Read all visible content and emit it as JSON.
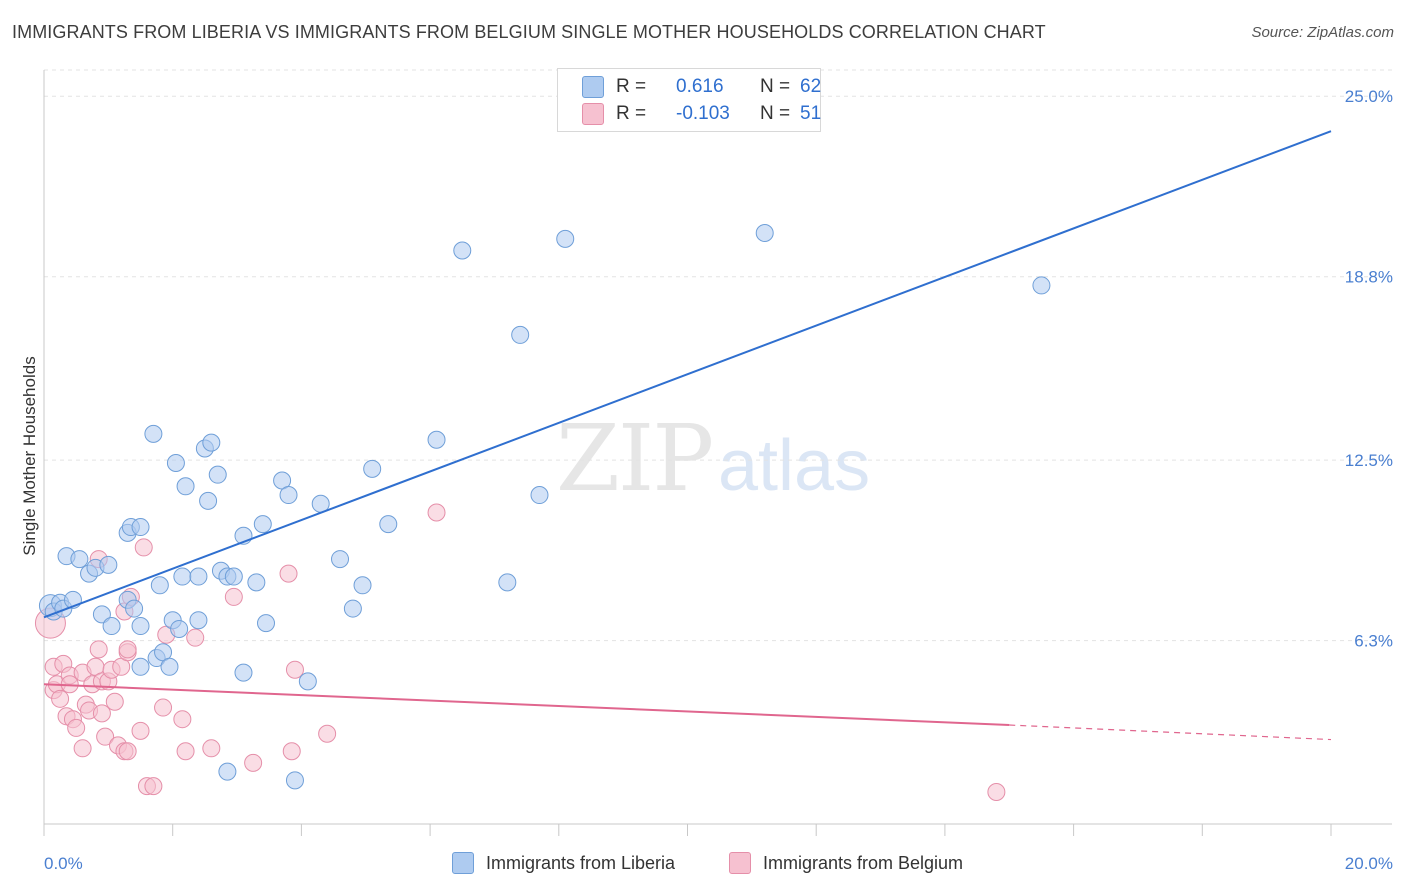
{
  "title": "IMMIGRANTS FROM LIBERIA VS IMMIGRANTS FROM BELGIUM SINGLE MOTHER HOUSEHOLDS CORRELATION CHART",
  "source": "Source: ZipAtlas.com",
  "watermark": {
    "zip": "ZIP",
    "atlas": "atlas"
  },
  "legend": {
    "liberia": {
      "r_label": "R =",
      "r_value": "0.616",
      "n_label": "N =",
      "n_value": "62"
    },
    "belgium": {
      "r_label": "R =",
      "r_value": "-0.103",
      "n_label": "N =",
      "n_value": "51"
    }
  },
  "bottom_legend": {
    "liberia": "Immigrants from Liberia",
    "belgium": "Immigrants from Belgium"
  },
  "colors": {
    "liberia_fill": "#aecbf0",
    "liberia_stroke": "#6f9fd8",
    "liberia_line": "#2f6fcf",
    "belgium_fill": "#f6c1d0",
    "belgium_stroke": "#e58fa9",
    "belgium_line": "#e0668e",
    "tick_label": "#4a7fd0",
    "grid": "#e3e3e3"
  },
  "chart_data": {
    "type": "scatter",
    "title": "IMMIGRANTS FROM LIBERIA VS IMMIGRANTS FROM BELGIUM SINGLE MOTHER HOUSEHOLDS CORRELATION CHART",
    "xlabel": "",
    "ylabel": "Single Mother Households",
    "xlim": [
      0,
      20
    ],
    "ylim": [
      0,
      25.9
    ],
    "x_tick_labels": [
      "0.0%",
      "20.0%"
    ],
    "y_ticks": [
      6.3,
      12.5,
      18.8,
      25.0
    ],
    "y_tick_labels": [
      "6.3%",
      "12.5%",
      "18.8%",
      "25.0%"
    ],
    "grid": true,
    "legend_position": "top-center",
    "series": [
      {
        "name": "Immigrants from Liberia",
        "r": 0.616,
        "n": 62,
        "trend": {
          "x": [
            0,
            20
          ],
          "y": [
            7.1,
            23.8
          ]
        },
        "points": [
          [
            0.1,
            7.5
          ],
          [
            0.15,
            7.3
          ],
          [
            0.25,
            7.6
          ],
          [
            0.3,
            7.4
          ],
          [
            0.45,
            7.7
          ],
          [
            0.35,
            9.2
          ],
          [
            0.55,
            9.1
          ],
          [
            0.7,
            8.6
          ],
          [
            0.8,
            8.8
          ],
          [
            1.0,
            8.9
          ],
          [
            0.9,
            7.2
          ],
          [
            1.05,
            6.8
          ],
          [
            1.3,
            10.0
          ],
          [
            1.35,
            10.2
          ],
          [
            1.5,
            10.2
          ],
          [
            1.3,
            7.7
          ],
          [
            1.5,
            6.8
          ],
          [
            1.4,
            7.4
          ],
          [
            1.5,
            5.4
          ],
          [
            1.7,
            13.4
          ],
          [
            1.8,
            8.2
          ],
          [
            1.75,
            5.7
          ],
          [
            1.85,
            5.9
          ],
          [
            1.95,
            5.4
          ],
          [
            2.0,
            7.0
          ],
          [
            2.1,
            6.7
          ],
          [
            2.05,
            12.4
          ],
          [
            2.15,
            8.5
          ],
          [
            2.2,
            11.6
          ],
          [
            2.4,
            8.5
          ],
          [
            2.4,
            7.0
          ],
          [
            2.5,
            12.9
          ],
          [
            2.55,
            11.1
          ],
          [
            2.6,
            13.1
          ],
          [
            2.7,
            12.0
          ],
          [
            2.75,
            8.7
          ],
          [
            2.85,
            8.5
          ],
          [
            2.95,
            8.5
          ],
          [
            3.1,
            9.9
          ],
          [
            3.1,
            5.2
          ],
          [
            3.3,
            8.3
          ],
          [
            3.4,
            10.3
          ],
          [
            3.45,
            6.9
          ],
          [
            3.7,
            11.8
          ],
          [
            3.8,
            11.3
          ],
          [
            3.9,
            1.5
          ],
          [
            4.1,
            4.9
          ],
          [
            4.3,
            11.0
          ],
          [
            4.6,
            9.1
          ],
          [
            4.8,
            7.4
          ],
          [
            4.95,
            8.2
          ],
          [
            5.1,
            12.2
          ],
          [
            5.35,
            10.3
          ],
          [
            6.1,
            13.2
          ],
          [
            6.5,
            19.7
          ],
          [
            7.2,
            8.3
          ],
          [
            7.4,
            16.8
          ],
          [
            7.7,
            11.3
          ],
          [
            8.1,
            20.1
          ],
          [
            11.2,
            20.3
          ],
          [
            15.5,
            18.5
          ],
          [
            2.85,
            1.8
          ]
        ]
      },
      {
        "name": "Immigrants from Belgium",
        "r": -0.103,
        "n": 51,
        "trend": {
          "x": [
            0,
            15
          ],
          "y": [
            4.8,
            3.4
          ]
        },
        "trend_dashed": {
          "x": [
            15,
            20
          ],
          "y": [
            3.4,
            2.9
          ]
        },
        "points": [
          [
            0.1,
            6.9
          ],
          [
            0.15,
            5.4
          ],
          [
            0.15,
            4.6
          ],
          [
            0.2,
            4.8
          ],
          [
            0.25,
            4.3
          ],
          [
            0.3,
            5.5
          ],
          [
            0.35,
            3.7
          ],
          [
            0.4,
            5.1
          ],
          [
            0.45,
            3.6
          ],
          [
            0.4,
            4.8
          ],
          [
            0.5,
            3.3
          ],
          [
            0.6,
            2.6
          ],
          [
            0.6,
            5.2
          ],
          [
            0.65,
            4.1
          ],
          [
            0.7,
            3.9
          ],
          [
            0.75,
            4.8
          ],
          [
            0.8,
            5.4
          ],
          [
            0.85,
            6.0
          ],
          [
            0.85,
            9.1
          ],
          [
            0.9,
            3.8
          ],
          [
            0.9,
            4.9
          ],
          [
            0.95,
            3.0
          ],
          [
            1.0,
            4.9
          ],
          [
            1.05,
            5.3
          ],
          [
            1.1,
            4.2
          ],
          [
            1.15,
            2.7
          ],
          [
            1.2,
            5.4
          ],
          [
            1.25,
            2.5
          ],
          [
            1.3,
            2.5
          ],
          [
            1.25,
            7.3
          ],
          [
            1.3,
            5.9
          ],
          [
            1.35,
            7.8
          ],
          [
            1.5,
            3.2
          ],
          [
            1.55,
            9.5
          ],
          [
            1.6,
            1.3
          ],
          [
            1.7,
            1.3
          ],
          [
            1.85,
            4.0
          ],
          [
            1.9,
            6.5
          ],
          [
            2.2,
            2.5
          ],
          [
            2.15,
            3.6
          ],
          [
            2.35,
            6.4
          ],
          [
            2.6,
            2.6
          ],
          [
            2.95,
            7.8
          ],
          [
            3.25,
            2.1
          ],
          [
            3.8,
            8.6
          ],
          [
            3.85,
            2.5
          ],
          [
            3.9,
            5.3
          ],
          [
            4.4,
            3.1
          ],
          [
            6.1,
            10.7
          ],
          [
            14.8,
            1.1
          ],
          [
            1.3,
            6.0
          ]
        ]
      }
    ]
  }
}
